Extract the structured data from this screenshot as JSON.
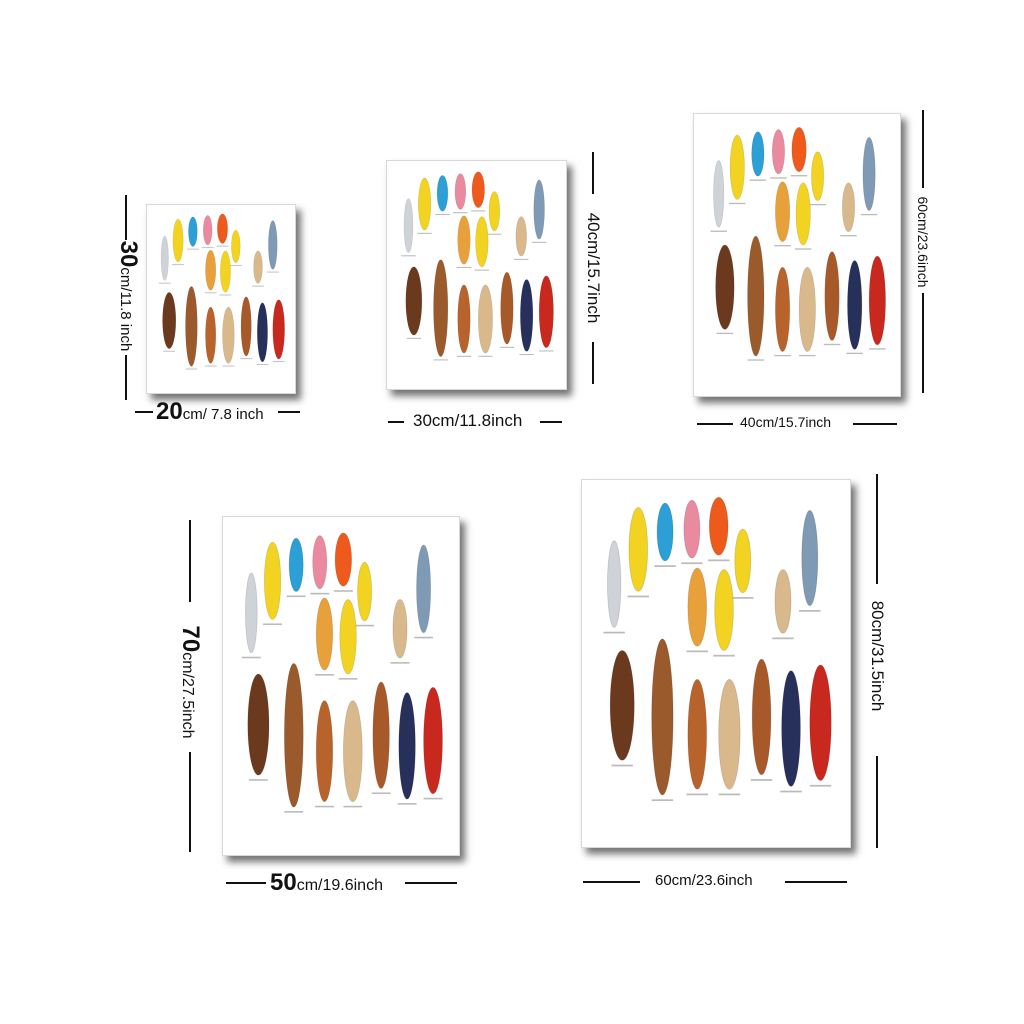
{
  "sizes": [
    {
      "width_label": "20cm/ 7.8 inch",
      "height_label": "30cm/11.8 inch"
    },
    {
      "width_label": "30cm/11.8inch",
      "height_label": "40cm/15.7inch"
    },
    {
      "width_label": "40cm/15.7inch",
      "height_label": "60cm/23.6inch"
    },
    {
      "width_label": "50cm/19.6inch",
      "height_label": "70cm/27.5inch"
    },
    {
      "width_label": "60cm/23.6inch",
      "height_label": "80cm/31.5inch"
    }
  ],
  "split_labels": {
    "w20_num": "20",
    "w20_rest": "cm/ 7.8 inch",
    "h30_num": "30",
    "h30_rest": "cm/11.8 inch",
    "w50_num": "50",
    "w50_rest": "cm/19.6inch",
    "h70_num": "70",
    "h70_rest": "cm/27.5inch"
  },
  "poster_colors": {
    "yellow": "#f2d321",
    "blue": "#2b9fd6",
    "pink": "#e98aa0",
    "orange": "#ee5a1c",
    "wood_dark": "#6b3a1e",
    "wood_mid": "#9a5a2c",
    "wood_light": "#d9b98c",
    "navy": "#27305a",
    "red": "#c8281e",
    "silver": "#cfd3d8",
    "slate": "#7f9ab5"
  }
}
